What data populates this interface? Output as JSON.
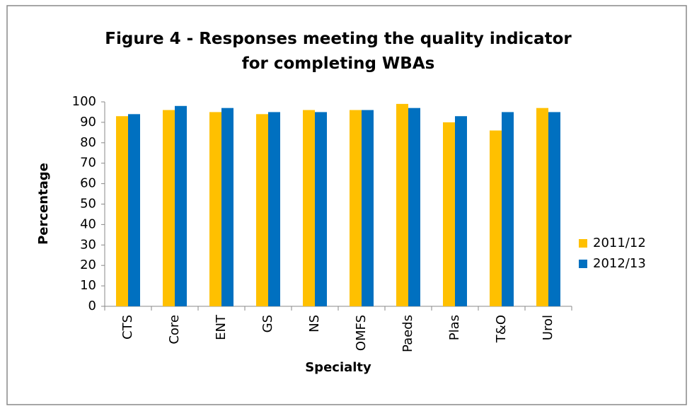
{
  "chart_data": {
    "type": "bar",
    "title": "Figure 4 - Responses meeting the quality indicator for completing WBAs",
    "x_label": "Specialty",
    "y_label": "Percentage",
    "categories": [
      "CTS",
      "Core",
      "ENT",
      "GS",
      "NS",
      "OMFS",
      "Paeds",
      "Plas",
      "T&O",
      "Urol"
    ],
    "series": [
      {
        "name": "2011/12",
        "color": "#ffc000",
        "values": [
          93,
          96,
          95,
          94,
          96,
          96,
          99,
          90,
          86,
          97
        ]
      },
      {
        "name": "2012/13",
        "color": "#0070c0",
        "values": [
          94,
          98,
          97,
          95,
          95,
          96,
          97,
          93,
          95,
          95
        ]
      }
    ],
    "ylim": [
      0,
      100
    ],
    "yticks": [
      0,
      10,
      20,
      30,
      40,
      50,
      60,
      70,
      80,
      90,
      100
    ],
    "grid": false,
    "legend": "right"
  }
}
